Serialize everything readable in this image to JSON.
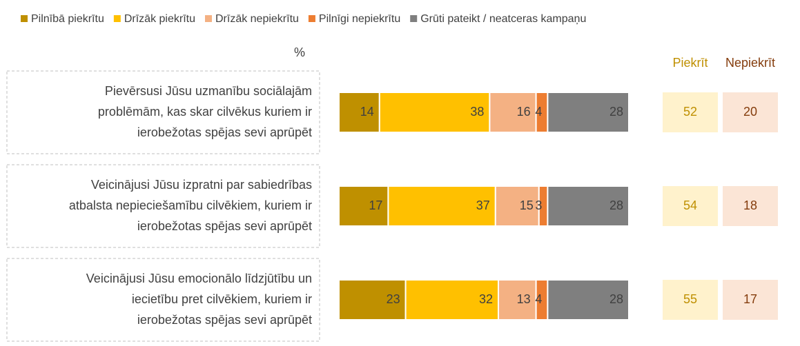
{
  "chart_data": {
    "type": "stacked_bar_horizontal",
    "unit_label": "%",
    "categories": [
      [
        "Pievērsusi Jūsu uzmanību sociālajām",
        "problēmām, kas skar cilvēkus kuriem ir",
        "ierobežotas spējas sevi aprūpēt"
      ],
      [
        "Veicinājusi Jūsu izpratni par sabiedrības",
        "atbalsta nepieciešamību cilvēkiem, kuriem ir",
        "ierobežotas spējas sevi aprūpēt"
      ],
      [
        "Veicinājusi Jūsu emocionālo līdzjūtību un",
        "iecietību pret cilvēkiem, kuriem ir",
        "ierobežotas spējas sevi aprūpēt"
      ]
    ],
    "series": [
      {
        "name": "Pilnībā piekrītu",
        "color": "#bf9000",
        "values": [
          14,
          17,
          23
        ]
      },
      {
        "name": "Drīzāk piekrītu",
        "color": "#ffc000",
        "values": [
          38,
          37,
          32
        ]
      },
      {
        "name": "Drīzāk nepiekrītu",
        "color": "#f4b183",
        "values": [
          16,
          15,
          13
        ]
      },
      {
        "name": "Pilnīgi nepiekrītu",
        "color": "#ed7d31",
        "values": [
          4,
          3,
          4
        ]
      },
      {
        "name": "Grūti pateikt / neatceras kampaņu",
        "color": "#7f7f7f",
        "values": [
          28,
          28,
          28
        ]
      }
    ],
    "xlim": [
      0,
      100
    ],
    "summary_series": [
      {
        "name": "Piekrīt",
        "color": "#fff2cc",
        "text_color": "#bf8f00",
        "values": [
          52,
          54,
          55
        ]
      },
      {
        "name": "Nepiekrīt",
        "color": "#fbe5d6",
        "text_color": "#843c0c",
        "values": [
          20,
          18,
          17
        ]
      }
    ],
    "legend": "top"
  }
}
